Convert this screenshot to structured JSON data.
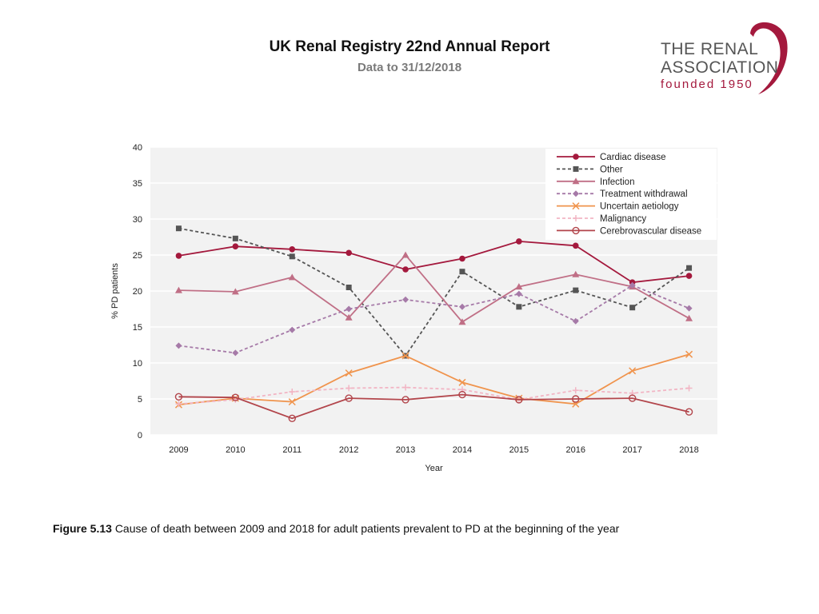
{
  "header": {
    "title": "UK Renal Registry 22nd Annual Report",
    "subtitle": "Data to 31/12/2018"
  },
  "logo": {
    "line1": "THE RENAL",
    "line2": "ASSOCIATION",
    "line3": "founded 1950",
    "brand_color": "#a4193d"
  },
  "caption": {
    "label": "Figure 5.13",
    "text": "Cause of death between 2009 and 2018 for adult patients prevalent to PD at the beginning of the year"
  },
  "chart_data": {
    "type": "line",
    "title": "",
    "xlabel": "Year",
    "ylabel": "% PD patients",
    "ylim": [
      0,
      40
    ],
    "yticks": [
      0,
      5,
      10,
      15,
      20,
      25,
      30,
      35,
      40
    ],
    "grid": true,
    "legend_position": "top-right",
    "categories": [
      "2009",
      "2010",
      "2011",
      "2012",
      "2013",
      "2014",
      "2015",
      "2016",
      "2017",
      "2018"
    ],
    "series": [
      {
        "name": "Cardiac disease",
        "color": "#a4193d",
        "dash": "solid",
        "marker": "circle-filled",
        "values": [
          24.9,
          26.2,
          25.8,
          25.3,
          23.0,
          24.5,
          26.9,
          26.3,
          21.2,
          22.1
        ]
      },
      {
        "name": "Other",
        "color": "#555555",
        "dash": "dashed",
        "marker": "square",
        "values": [
          28.7,
          27.3,
          24.8,
          20.5,
          11.0,
          22.7,
          17.8,
          20.1,
          17.7,
          23.2
        ]
      },
      {
        "name": "Infection",
        "color": "#c06f86",
        "dash": "solid",
        "marker": "triangle",
        "values": [
          20.1,
          19.9,
          21.9,
          16.3,
          25.0,
          15.7,
          20.6,
          22.3,
          20.6,
          16.2
        ]
      },
      {
        "name": "Treatment withdrawal",
        "color": "#a67aa8",
        "dash": "dashed",
        "marker": "diamond",
        "values": [
          12.4,
          11.4,
          14.6,
          17.5,
          18.8,
          17.8,
          19.6,
          15.8,
          20.8,
          17.6
        ]
      },
      {
        "name": "Uncertain aetiology",
        "color": "#f0944d",
        "dash": "solid",
        "marker": "x",
        "values": [
          4.2,
          5.1,
          4.6,
          8.6,
          11.0,
          7.3,
          5.1,
          4.3,
          8.9,
          11.2
        ]
      },
      {
        "name": "Malignancy",
        "color": "#f2b5c4",
        "dash": "dashed",
        "marker": "plus",
        "values": [
          4.3,
          4.9,
          6.0,
          6.5,
          6.6,
          6.3,
          4.9,
          6.2,
          5.8,
          6.5
        ]
      },
      {
        "name": "Cerebrovascular disease",
        "color": "#b2454b",
        "dash": "solid",
        "marker": "circle-open",
        "values": [
          5.3,
          5.2,
          2.3,
          5.1,
          4.9,
          5.6,
          4.9,
          5.0,
          5.1,
          3.2
        ]
      }
    ]
  }
}
